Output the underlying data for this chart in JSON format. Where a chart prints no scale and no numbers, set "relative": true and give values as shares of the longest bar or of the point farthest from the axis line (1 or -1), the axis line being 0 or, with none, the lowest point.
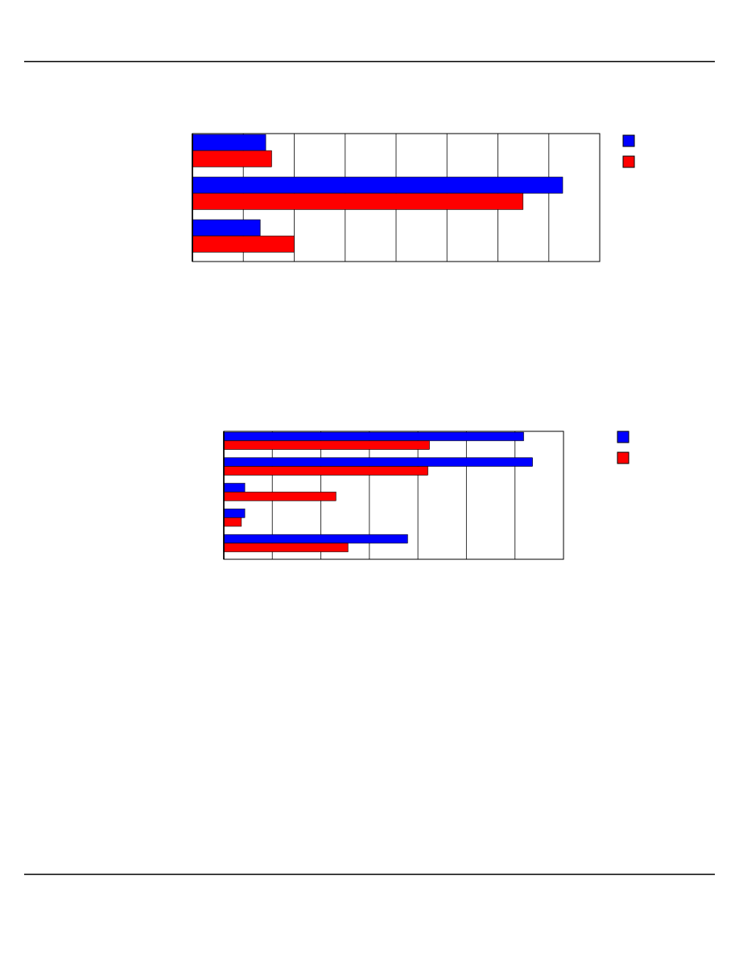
{
  "chart_data": [
    {
      "type": "bar",
      "orientation": "horizontal",
      "relative": true,
      "categories": [
        null,
        null,
        null
      ],
      "grid": "x",
      "series": [
        {
          "color": "#0000ff",
          "values": [
            0.198,
            1,
            0.183
          ]
        },
        {
          "color": "#ff0000",
          "values": [
            0.214,
            0.893,
            0.275
          ]
        }
      ]
    },
    {
      "type": "bar",
      "orientation": "horizontal",
      "relative": true,
      "categories": [
        null,
        null,
        null,
        null,
        null
      ],
      "grid": "x",
      "series": [
        {
          "color": "#0000ff",
          "values": [
            0.971,
            1,
            0.068,
            0.068,
            0.595
          ]
        },
        {
          "color": "#ff0000",
          "values": [
            0.666,
            0.661,
            0.363,
            0.057,
            0.402
          ]
        }
      ]
    }
  ]
}
